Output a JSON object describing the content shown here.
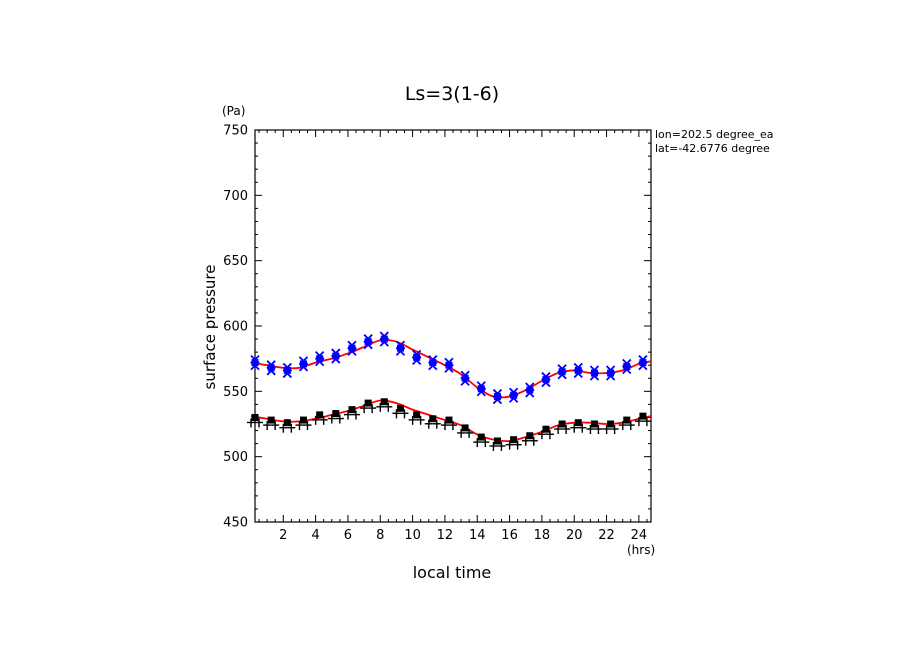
{
  "chart_data": {
    "type": "line",
    "title": "Ls=3(1-6)",
    "xlabel": "local time",
    "ylabel": "surface pressure",
    "x_unit": "(hrs)",
    "y_unit": "(Pa)",
    "annotations": [
      "lon=202.5 degree_ea",
      "lat=-42.6776 degree"
    ],
    "xlim": [
      0.25,
      24.75
    ],
    "ylim": [
      450,
      750
    ],
    "grid": false,
    "x_ticks": [
      2,
      4,
      6,
      8,
      10,
      12,
      14,
      16,
      18,
      20,
      22,
      24
    ],
    "y_ticks": [
      450,
      500,
      550,
      600,
      650,
      700,
      750
    ],
    "colors": {
      "upper_markers": "#0000ff",
      "lower_markers": "#000000",
      "fit": "#ff0000"
    },
    "markers": [
      {
        "color": "#0000ff",
        "symbol": "x",
        "x": [
          0.25,
          1.25,
          2.25,
          3.25,
          4.25,
          5.25,
          6.25,
          7.25,
          8.25,
          9.25,
          10.25,
          11.25,
          12.25,
          13.25,
          14.25,
          15.25,
          16.25,
          17.25,
          18.25,
          19.25,
          20.25,
          21.25,
          22.25,
          23.25,
          24.25
        ],
        "y": [
          572,
          568,
          566,
          571,
          575,
          577,
          583,
          588,
          590,
          583,
          576,
          572,
          570,
          560,
          552,
          546,
          547,
          551,
          559,
          565,
          566,
          564,
          564,
          569,
          572
        ]
      },
      {
        "color": "#000000",
        "symbol": "+",
        "x": [
          0.25,
          1.25,
          2.25,
          3.25,
          4.25,
          5.25,
          6.25,
          7.25,
          8.25,
          9.25,
          10.25,
          11.25,
          12.25,
          13.25,
          14.25,
          15.25,
          16.25,
          17.25,
          18.25,
          19.25,
          20.25,
          21.25,
          22.25,
          23.25,
          24.25
        ],
        "y": [
          530,
          528,
          526,
          528,
          532,
          533,
          536,
          541,
          542,
          537,
          532,
          529,
          528,
          522,
          515,
          512,
          513,
          516,
          521,
          525,
          526,
          525,
          525,
          528,
          531
        ]
      }
    ],
    "fits": [
      {
        "color": "#ff0000",
        "x": [
          0,
          1,
          2,
          3,
          4,
          5,
          6,
          7,
          8,
          9,
          10,
          11,
          12,
          13,
          14,
          15,
          16,
          17,
          18,
          19,
          20,
          21,
          22,
          23,
          24,
          24.75
        ],
        "y": [
          572,
          570,
          568,
          568,
          572,
          575,
          579,
          584,
          589,
          588,
          582,
          576,
          570,
          563,
          553,
          546,
          546,
          551,
          558,
          564,
          566,
          564,
          564,
          566,
          571,
          573
        ]
      },
      {
        "color": "#ff0000",
        "x": [
          0,
          1,
          2,
          3,
          4,
          5,
          6,
          7,
          8,
          9,
          10,
          11,
          12,
          13,
          14,
          15,
          16,
          17,
          18,
          19,
          20,
          21,
          22,
          23,
          24,
          24.75
        ],
        "y": [
          531,
          529,
          527,
          527,
          529,
          532,
          535,
          539,
          543,
          541,
          536,
          532,
          528,
          524,
          517,
          513,
          512,
          515,
          519,
          524,
          526,
          526,
          525,
          526,
          529,
          531
        ]
      }
    ]
  }
}
